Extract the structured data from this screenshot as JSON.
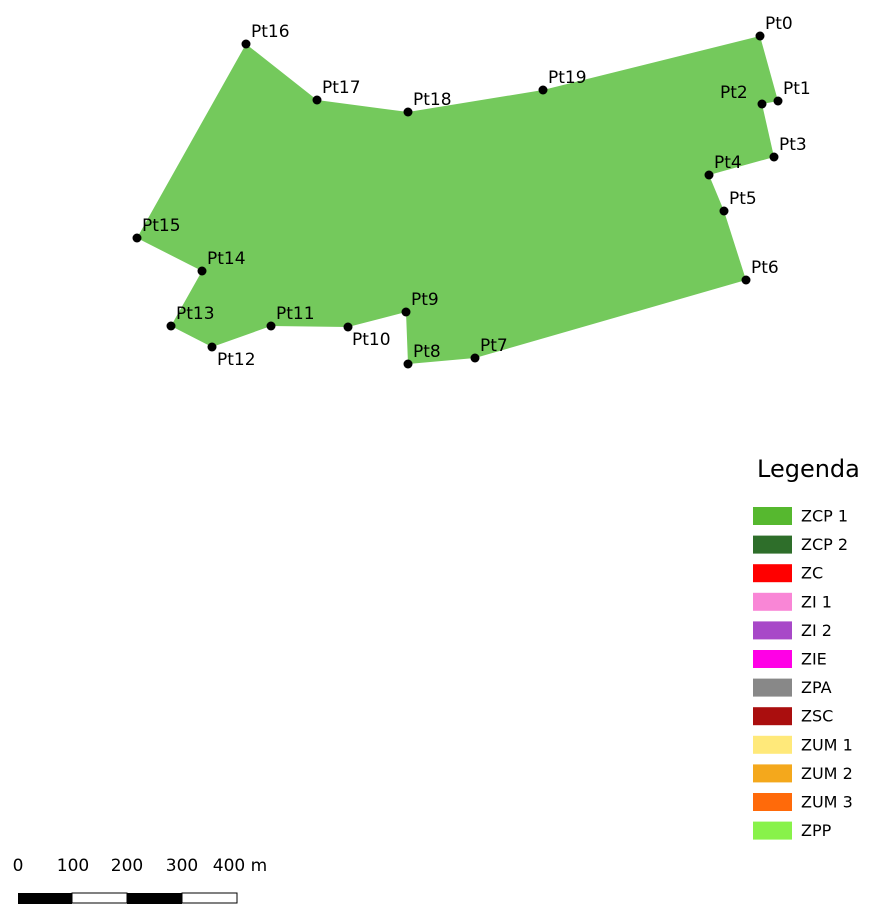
{
  "map": {
    "points": [
      "Pt0",
      "Pt1",
      "Pt2",
      "Pt3",
      "Pt4",
      "Pt5",
      "Pt6",
      "Pt7",
      "Pt8",
      "Pt9",
      "Pt10",
      "Pt11",
      "Pt12",
      "Pt13",
      "Pt14",
      "Pt15",
      "Pt16",
      "Pt17",
      "Pt18",
      "Pt19"
    ],
    "area_color": "#74c95c",
    "legend": {
      "title": "Legenda",
      "items": [
        {
          "name": "ZCP 1",
          "color": "#56b82f"
        },
        {
          "name": "ZCP 2",
          "color": "#2e6e2a"
        },
        {
          "name": "ZC",
          "color": "#ff0000"
        },
        {
          "name": "ZI 1",
          "color": "#f986d6"
        },
        {
          "name": "ZI 2",
          "color": "#a848c8"
        },
        {
          "name": "ZIE",
          "color": "#ff00e6"
        },
        {
          "name": "ZPA",
          "color": "#888888"
        },
        {
          "name": "ZSC",
          "color": "#aa0e0e"
        },
        {
          "name": "ZUM 1",
          "color": "#ffe97a"
        },
        {
          "name": "ZUM 2",
          "color": "#f4a81c"
        },
        {
          "name": "ZUM 3",
          "color": "#ff6a0a"
        },
        {
          "name": "ZPP",
          "color": "#88f24a"
        }
      ]
    },
    "scale_bar": {
      "labels": [
        "0",
        "100",
        "200",
        "300",
        "400 m"
      ]
    }
  }
}
